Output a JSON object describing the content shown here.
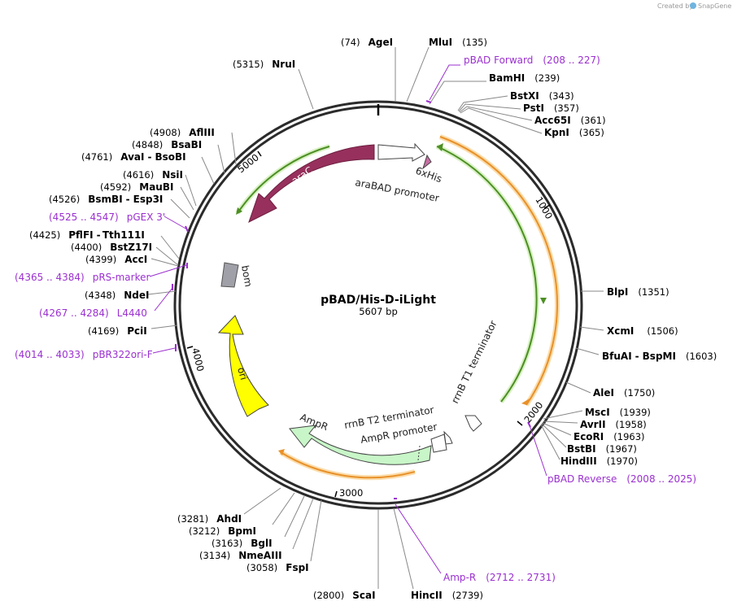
{
  "header": {
    "created_by": "Created by",
    "brand": "SnapGene"
  },
  "plasmid": {
    "name": "pBAD/His-D-iLight",
    "size_label": "5607 bp",
    "length": 5607
  },
  "ticks": [
    {
      "label": "1000",
      "pos": 1000
    },
    {
      "label": "2000",
      "pos": 2000
    },
    {
      "label": "3000",
      "pos": 3000
    },
    {
      "label": "4000",
      "pos": 4000
    },
    {
      "label": "5000",
      "pos": 5000
    }
  ],
  "features": [
    {
      "name": "araC",
      "label": "araC",
      "start": 4900,
      "end": 5607,
      "direction": "reverse",
      "color": "#97305c"
    },
    {
      "name": "araBAD-promoter",
      "label": "araBAD promoter",
      "start": 0,
      "end": 280,
      "direction": "forward",
      "color": "#ffffff"
    },
    {
      "name": "6xHis",
      "label": "6xHis",
      "start": 345,
      "end": 365,
      "direction": "forward",
      "color": "#c86ea3"
    },
    {
      "name": "rrnB-T1-terminator",
      "label": "rrnB T1 terminator",
      "start": 2110,
      "end": 2200,
      "direction": "forward",
      "color": "#ffffff"
    },
    {
      "name": "rrnB-T2-terminator",
      "label": "rrnB T2 terminator",
      "start": 2280,
      "end": 2310,
      "direction": "forward",
      "color": "#ffffff"
    },
    {
      "name": "AmpR-promoter",
      "label": "AmpR promoter",
      "start": 2320,
      "end": 2420,
      "direction": "reverse",
      "color": "#ffffff"
    },
    {
      "name": "AmpR",
      "label": "AmpR",
      "start": 2430,
      "end": 3250,
      "direction": "reverse",
      "color": "#c8f6c8"
    },
    {
      "name": "ori",
      "label": "ori",
      "start": 3420,
      "end": 4010,
      "direction": "reverse",
      "color": "#ffff00"
    },
    {
      "name": "bom",
      "label": "bom",
      "start": 4280,
      "end": 4380,
      "direction": "none",
      "color": "#a0a0a8"
    }
  ],
  "sites": [
    {
      "name": "AgeI",
      "pos": "(74)"
    },
    {
      "name": "MluI",
      "pos": "(135)"
    },
    {
      "name": "BamHI",
      "pos": "(239)"
    },
    {
      "name": "BstXI",
      "pos": "(343)"
    },
    {
      "name": "PstI",
      "pos": "(357)"
    },
    {
      "name": "Acc65I",
      "pos": "(361)"
    },
    {
      "name": "KpnI",
      "pos": "(365)"
    },
    {
      "name": "BlpI",
      "pos": "(1351)"
    },
    {
      "name": "XcmI",
      "pos": "(1506)"
    },
    {
      "name": "BfuAI",
      "name2": "BspMI",
      "pos": "(1603)"
    },
    {
      "name": "AleI",
      "pos": "(1750)"
    },
    {
      "name": "MscI",
      "pos": "(1939)"
    },
    {
      "name": "AvrII",
      "pos": "(1958)"
    },
    {
      "name": "EcoRI",
      "pos": "(1963)"
    },
    {
      "name": "BstBI",
      "pos": "(1967)"
    },
    {
      "name": "HindIII",
      "pos": "(1970)"
    },
    {
      "name": "HincII",
      "pos": "(2739)"
    },
    {
      "name": "ScaI",
      "pos": "(2800)"
    },
    {
      "name": "FspI",
      "pos": "(3058)"
    },
    {
      "name": "NmeAIII",
      "pos": "(3134)"
    },
    {
      "name": "BglI",
      "pos": "(3163)"
    },
    {
      "name": "BpmI",
      "pos": "(3212)"
    },
    {
      "name": "AhdI",
      "pos": "(3281)"
    },
    {
      "name": "PciI",
      "pos": "(4169)"
    },
    {
      "name": "NdeI",
      "pos": "(4348)"
    },
    {
      "name": "AccI",
      "pos": "(4399)"
    },
    {
      "name": "BstZ17I",
      "pos": "(4400)"
    },
    {
      "name": "PflFI",
      "name2": "Tth111I",
      "pos": "(4425)"
    },
    {
      "name": "BsmBI",
      "name2": "Esp3I",
      "pos": "(4526)"
    },
    {
      "name": "MauBI",
      "pos": "(4592)"
    },
    {
      "name": "NsiI",
      "pos": "(4616)"
    },
    {
      "name": "AvaI",
      "name2": "BsoBI",
      "pos": "(4761)"
    },
    {
      "name": "BsaBI",
      "pos": "(4848)"
    },
    {
      "name": "AflIII",
      "pos": "(4908)"
    },
    {
      "name": "NruI",
      "pos": "(5315)"
    }
  ],
  "primers": [
    {
      "name": "pBAD Forward",
      "range": "(208 .. 227)"
    },
    {
      "name": "pBAD Reverse",
      "range": "(2008 .. 2025)"
    },
    {
      "name": "Amp-R",
      "range": "(2712 .. 2731)"
    },
    {
      "name": "pBR322ori-F",
      "range": "(4014 .. 4033)"
    },
    {
      "name": "L4440",
      "range": "(4267 .. 4284)"
    },
    {
      "name": "pRS-marker",
      "range": "(4365 .. 4384)"
    },
    {
      "name": "pGEX 3'",
      "range": "(4525 .. 4547)"
    }
  ],
  "colors": {
    "backbone": "#333333",
    "primer": "#9b30d0",
    "orf_orange": "#f3a73a",
    "orf_green": "#5ea82c"
  }
}
